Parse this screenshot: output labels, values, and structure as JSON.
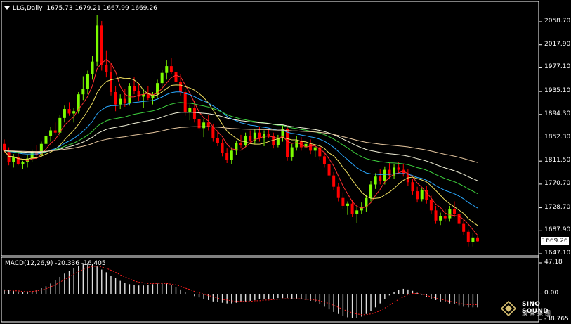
{
  "header": {
    "symbol": "LLG,Daily",
    "ohlc": "1675.73 1679.21 1667.99 1669.26"
  },
  "current_price": "1669.26",
  "price_axis": [
    "2058.70",
    "2017.90",
    "1977.10",
    "1935.10",
    "1894.30",
    "1852.30",
    "1811.50",
    "1770.70",
    "1728.70",
    "1687.90",
    "1647.10"
  ],
  "macd": {
    "label": "MACD(12,26,9) -20.336 -16.405",
    "axis": [
      "47.18",
      "0.00",
      "-38.765"
    ]
  },
  "logo": {
    "line1": "SINO SOUND",
    "line2": "漢聲集團"
  },
  "colors": {
    "background": "#000000",
    "up": "#7CFC00",
    "down": "#FF0000",
    "axis": "#FFFFFF"
  },
  "chart_data": {
    "type": "candlestick",
    "ylim": [
      1647.1,
      2058.7
    ],
    "candles": [
      [
        1842,
        1850,
        1826,
        1830
      ],
      [
        1830,
        1836,
        1804,
        1810
      ],
      [
        1810,
        1824,
        1800,
        1818
      ],
      [
        1818,
        1826,
        1804,
        1806
      ],
      [
        1806,
        1812,
        1798,
        1810
      ],
      [
        1810,
        1822,
        1800,
        1816
      ],
      [
        1816,
        1832,
        1810,
        1828
      ],
      [
        1828,
        1840,
        1820,
        1822
      ],
      [
        1822,
        1846,
        1818,
        1842
      ],
      [
        1842,
        1860,
        1836,
        1856
      ],
      [
        1856,
        1872,
        1846,
        1866
      ],
      [
        1866,
        1880,
        1858,
        1862
      ],
      [
        1862,
        1894,
        1856,
        1888
      ],
      [
        1888,
        1910,
        1880,
        1904
      ],
      [
        1904,
        1916,
        1892,
        1896
      ],
      [
        1896,
        1906,
        1880,
        1900
      ],
      [
        1900,
        1934,
        1896,
        1930
      ],
      [
        1930,
        1962,
        1920,
        1940
      ],
      [
        1940,
        1972,
        1930,
        1966
      ],
      [
        1966,
        1998,
        1956,
        1988
      ],
      [
        1988,
        2070,
        1980,
        2052
      ],
      [
        2052,
        2060,
        1972,
        1982
      ],
      [
        1982,
        2008,
        1960,
        1970
      ],
      [
        1970,
        1986,
        1928,
        1934
      ],
      [
        1934,
        1944,
        1900,
        1912
      ],
      [
        1912,
        1930,
        1904,
        1922
      ],
      [
        1922,
        1940,
        1908,
        1914
      ],
      [
        1914,
        1950,
        1910,
        1944
      ],
      [
        1944,
        1960,
        1930,
        1936
      ],
      [
        1936,
        1948,
        1918,
        1926
      ],
      [
        1926,
        1940,
        1906,
        1930
      ],
      [
        1930,
        1944,
        1920,
        1924
      ],
      [
        1924,
        1934,
        1912,
        1930
      ],
      [
        1930,
        1956,
        1924,
        1950
      ],
      [
        1950,
        1974,
        1942,
        1968
      ],
      [
        1968,
        1990,
        1956,
        1980
      ],
      [
        1980,
        1994,
        1966,
        1970
      ],
      [
        1970,
        1982,
        1946,
        1952
      ],
      [
        1952,
        1966,
        1928,
        1934
      ],
      [
        1934,
        1940,
        1892,
        1898
      ],
      [
        1898,
        1912,
        1884,
        1906
      ],
      [
        1906,
        1918,
        1880,
        1886
      ],
      [
        1886,
        1900,
        1864,
        1870
      ],
      [
        1870,
        1886,
        1854,
        1880
      ],
      [
        1880,
        1894,
        1866,
        1872
      ],
      [
        1872,
        1878,
        1846,
        1852
      ],
      [
        1852,
        1866,
        1838,
        1844
      ],
      [
        1844,
        1850,
        1820,
        1826
      ],
      [
        1826,
        1834,
        1808,
        1814
      ],
      [
        1814,
        1836,
        1806,
        1830
      ],
      [
        1830,
        1848,
        1822,
        1844
      ],
      [
        1844,
        1858,
        1834,
        1840
      ],
      [
        1840,
        1862,
        1836,
        1856
      ],
      [
        1856,
        1866,
        1842,
        1848
      ],
      [
        1848,
        1868,
        1842,
        1862
      ],
      [
        1862,
        1872,
        1846,
        1852
      ],
      [
        1852,
        1866,
        1838,
        1860
      ],
      [
        1860,
        1870,
        1852,
        1856
      ],
      [
        1856,
        1862,
        1834,
        1840
      ],
      [
        1840,
        1858,
        1836,
        1852
      ],
      [
        1852,
        1874,
        1846,
        1868
      ],
      [
        1868,
        1872,
        1812,
        1818
      ],
      [
        1818,
        1842,
        1812,
        1836
      ],
      [
        1836,
        1856,
        1830,
        1848
      ],
      [
        1848,
        1854,
        1830,
        1836
      ],
      [
        1836,
        1846,
        1822,
        1842
      ],
      [
        1842,
        1850,
        1824,
        1830
      ],
      [
        1830,
        1840,
        1818,
        1836
      ],
      [
        1836,
        1842,
        1814,
        1820
      ],
      [
        1820,
        1828,
        1800,
        1806
      ],
      [
        1806,
        1814,
        1780,
        1786
      ],
      [
        1786,
        1792,
        1760,
        1766
      ],
      [
        1766,
        1772,
        1740,
        1746
      ],
      [
        1746,
        1756,
        1726,
        1732
      ],
      [
        1732,
        1740,
        1716,
        1736
      ],
      [
        1736,
        1742,
        1712,
        1718
      ],
      [
        1718,
        1730,
        1702,
        1724
      ],
      [
        1724,
        1738,
        1718,
        1730
      ],
      [
        1730,
        1752,
        1722,
        1746
      ],
      [
        1746,
        1776,
        1740,
        1770
      ],
      [
        1770,
        1790,
        1762,
        1784
      ],
      [
        1784,
        1798,
        1770,
        1776
      ],
      [
        1776,
        1802,
        1770,
        1796
      ],
      [
        1796,
        1808,
        1780,
        1786
      ],
      [
        1786,
        1806,
        1780,
        1800
      ],
      [
        1800,
        1810,
        1790,
        1796
      ],
      [
        1796,
        1806,
        1784,
        1790
      ],
      [
        1790,
        1798,
        1768,
        1774
      ],
      [
        1774,
        1780,
        1752,
        1758
      ],
      [
        1758,
        1766,
        1738,
        1744
      ],
      [
        1744,
        1764,
        1740,
        1760
      ],
      [
        1760,
        1768,
        1736,
        1742
      ],
      [
        1742,
        1750,
        1718,
        1724
      ],
      [
        1724,
        1732,
        1700,
        1706
      ],
      [
        1706,
        1720,
        1698,
        1714
      ],
      [
        1714,
        1726,
        1704,
        1710
      ],
      [
        1710,
        1732,
        1704,
        1726
      ],
      [
        1726,
        1740,
        1712,
        1718
      ],
      [
        1718,
        1722,
        1694,
        1700
      ],
      [
        1700,
        1708,
        1680,
        1686
      ],
      [
        1686,
        1690,
        1660,
        1668
      ],
      [
        1668,
        1684,
        1660,
        1676
      ],
      [
        1676,
        1679,
        1668,
        1669
      ]
    ],
    "macd": {
      "ylim": [
        -38.765,
        47.18
      ],
      "histogram": [
        7,
        6,
        5,
        4,
        3,
        3,
        4,
        6,
        9,
        12,
        16,
        21,
        26,
        31,
        35,
        39,
        42,
        45,
        47,
        45,
        42,
        37,
        33,
        28,
        24,
        20,
        17,
        15,
        14,
        13,
        13,
        14,
        15,
        16,
        17,
        16,
        14,
        11,
        7,
        3,
        0,
        -3,
        -5,
        -7,
        -9,
        -11,
        -12,
        -13,
        -14,
        -14,
        -13,
        -12,
        -11,
        -10,
        -9,
        -8,
        -8,
        -7,
        -7,
        -6,
        -6,
        -6,
        -7,
        -7,
        -8,
        -9,
        -10,
        -12,
        -15,
        -19,
        -23,
        -27,
        -30,
        -33,
        -35,
        -36,
        -36,
        -34,
        -30,
        -25,
        -20,
        -14,
        -8,
        -2,
        3,
        6,
        8,
        7,
        5,
        2,
        -1,
        -4,
        -7,
        -9,
        -11,
        -12,
        -14,
        -15,
        -17,
        -19,
        -20,
        -20,
        -20
      ],
      "signal": [
        6,
        6,
        5,
        5,
        4,
        4,
        4,
        5,
        6,
        8,
        11,
        14,
        18,
        22,
        26,
        30,
        34,
        37,
        40,
        42,
        42,
        41,
        39,
        36,
        33,
        29,
        26,
        23,
        20,
        18,
        17,
        16,
        16,
        16,
        16,
        16,
        15,
        14,
        12,
        9,
        7,
        4,
        2,
        0,
        -2,
        -4,
        -6,
        -8,
        -9,
        -10,
        -11,
        -11,
        -11,
        -11,
        -10,
        -10,
        -9,
        -9,
        -8,
        -8,
        -7,
        -7,
        -7,
        -7,
        -7,
        -8,
        -8,
        -9,
        -10,
        -12,
        -14,
        -17,
        -20,
        -23,
        -26,
        -28,
        -30,
        -31,
        -31,
        -30,
        -28,
        -25,
        -21,
        -17,
        -12,
        -8,
        -4,
        -1,
        1,
        1,
        0,
        -2,
        -4,
        -6,
        -8,
        -9,
        -11,
        -12,
        -14,
        -15,
        -16,
        -16,
        -16
      ]
    }
  }
}
